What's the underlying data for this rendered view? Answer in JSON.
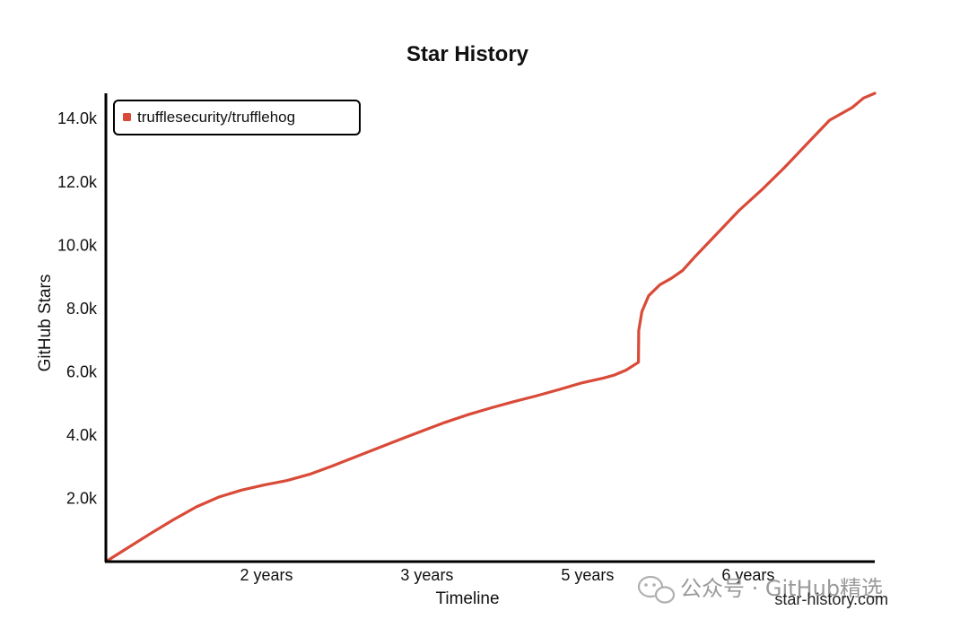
{
  "chart_data": {
    "type": "line",
    "title": "Star History",
    "xlabel": "Timeline",
    "ylabel": "GitHub Stars",
    "x_unit": "years",
    "xlim": [
      0,
      6.8
    ],
    "ylim": [
      0,
      14800
    ],
    "y_ticks": [
      2000,
      4000,
      6000,
      8000,
      10000,
      12000,
      14000
    ],
    "y_tick_labels": [
      "2.0k",
      "4.0k",
      "6.0k",
      "8.0k",
      "10.0k",
      "12.0k",
      "14.0k"
    ],
    "x_ticks": [
      1.42,
      2.84,
      4.26,
      5.68
    ],
    "x_tick_labels": [
      "2 years",
      "3 years",
      "5 years",
      "6 years"
    ],
    "legend_position": "top-left",
    "color": "#d94a38",
    "series": [
      {
        "name": "trufflesecurity/trufflehog",
        "x": [
          0,
          0.2,
          0.4,
          0.6,
          0.8,
          1.0,
          1.2,
          1.4,
          1.6,
          1.8,
          2.0,
          2.2,
          2.4,
          2.6,
          2.8,
          3.0,
          3.2,
          3.4,
          3.6,
          3.8,
          4.0,
          4.2,
          4.4,
          4.5,
          4.6,
          4.71,
          4.712,
          4.74,
          4.8,
          4.9,
          5.0,
          5.1,
          5.2,
          5.4,
          5.6,
          5.8,
          6.0,
          6.2,
          6.4,
          6.6,
          6.7,
          6.8
        ],
        "y": [
          0,
          450,
          900,
          1330,
          1730,
          2040,
          2260,
          2420,
          2560,
          2760,
          3020,
          3300,
          3580,
          3860,
          4130,
          4400,
          4640,
          4850,
          5050,
          5230,
          5430,
          5640,
          5800,
          5900,
          6050,
          6300,
          7300,
          7900,
          8400,
          8750,
          8950,
          9200,
          9600,
          10350,
          11100,
          11750,
          12450,
          13200,
          13950,
          14350,
          14650,
          14800
        ]
      }
    ]
  },
  "legend": {
    "label": "trufflesecurity/trufflehog"
  },
  "credit": "star-history.com",
  "watermark": {
    "text": "公众号 · GitHub精选"
  }
}
